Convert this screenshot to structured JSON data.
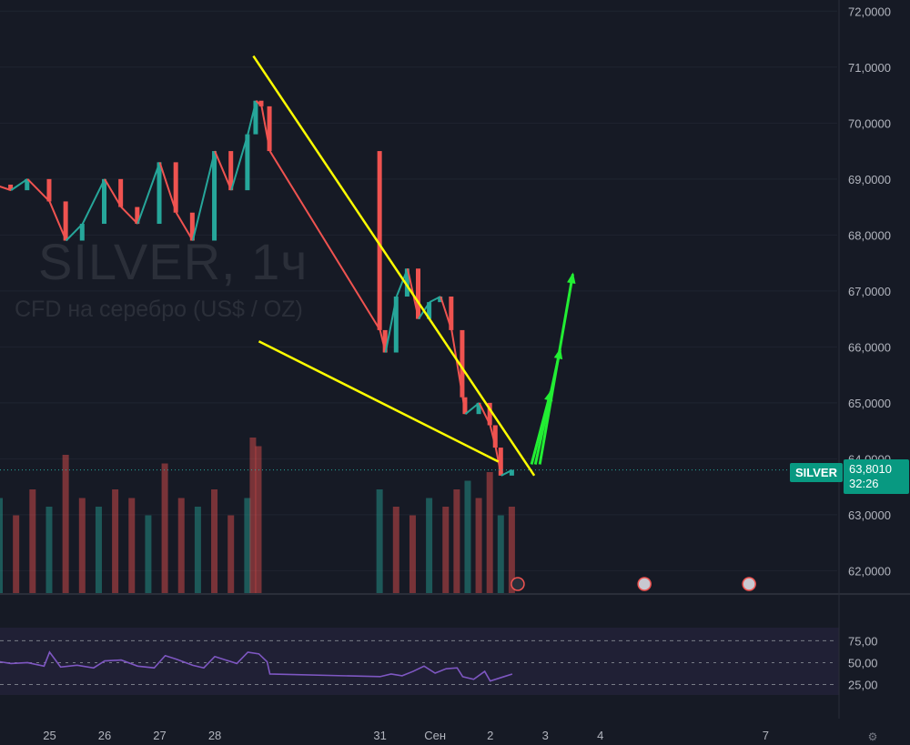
{
  "watermark": {
    "symbol": "SILVER, 1ч",
    "description": "CFD на серебро (US$ / OZ)"
  },
  "last_price": {
    "symbol": "SILVER",
    "price": "63,8010",
    "countdown": "32:26"
  },
  "colors": {
    "up": "#26a69a",
    "down": "#ef5350",
    "trendline": "#ffff00",
    "arrows": "#22ee33",
    "rsi": "#7e57c2",
    "background": "#161a25"
  },
  "event_icons": [
    "flash-icon",
    "us-flag-icon",
    "us-flag-icon"
  ],
  "chart_data": [
    {
      "type": "line",
      "name": "SILVER price",
      "y_axis_labels": [
        "72,0000",
        "71,0000",
        "70,0000",
        "69,0000",
        "68,0000",
        "67,0000",
        "66,0000",
        "65,0000",
        "64,0000",
        "63,0000",
        "62,0000"
      ],
      "y_ticks": [
        72,
        71,
        70,
        69,
        68,
        67,
        66,
        65,
        64,
        63,
        62
      ],
      "ylim": [
        61.6,
        72.2
      ],
      "x_axis_labels": [
        "25",
        "26",
        "27",
        "28",
        "31",
        "Сен",
        "2",
        "3",
        "4",
        "7"
      ],
      "x_ticks": [
        25,
        26,
        27,
        28,
        31,
        32,
        33,
        34,
        35,
        38
      ],
      "xlim": [
        24.1,
        39.3
      ],
      "x": [
        24.0,
        24.3,
        24.6,
        25.0,
        25.3,
        25.6,
        26.0,
        26.3,
        26.6,
        27.0,
        27.3,
        27.6,
        28.0,
        28.3,
        28.6,
        28.75,
        28.85,
        29.0,
        31.0,
        31.1,
        31.3,
        31.5,
        31.7,
        31.9,
        32.1,
        32.3,
        32.5,
        32.55,
        32.8,
        33.0,
        33.1,
        33.2,
        33.4
      ],
      "y": [
        68.9,
        68.8,
        69.0,
        68.6,
        67.9,
        68.2,
        69.0,
        68.5,
        68.2,
        69.3,
        68.4,
        67.9,
        69.5,
        68.8,
        69.8,
        70.4,
        70.3,
        69.5,
        66.3,
        65.9,
        66.9,
        67.4,
        66.5,
        66.8,
        66.9,
        66.3,
        65.1,
        64.8,
        65.0,
        64.6,
        64.2,
        63.7,
        63.8
      ]
    },
    {
      "type": "bar",
      "name": "Volume",
      "x": [
        24.1,
        24.4,
        24.7,
        25.0,
        25.3,
        25.6,
        25.9,
        26.2,
        26.5,
        26.8,
        27.1,
        27.4,
        27.7,
        28.0,
        28.3,
        28.6,
        28.7,
        28.8,
        31.0,
        31.3,
        31.6,
        31.9,
        32.2,
        32.4,
        32.6,
        32.8,
        33.0,
        33.2,
        33.4
      ],
      "values": [
        0.55,
        0.45,
        0.6,
        0.5,
        0.8,
        0.55,
        0.5,
        0.6,
        0.55,
        0.45,
        0.75,
        0.55,
        0.5,
        0.6,
        0.45,
        0.55,
        0.9,
        0.85,
        0.6,
        0.5,
        0.45,
        0.55,
        0.5,
        0.6,
        0.65,
        0.55,
        0.7,
        0.45,
        0.5
      ]
    },
    {
      "type": "line",
      "name": "RSI",
      "y_axis_labels": [
        "75,00",
        "50,00",
        "25,00"
      ],
      "y_ticks": [
        75,
        50,
        25
      ],
      "ylim": [
        12,
        90
      ],
      "x": [
        24.0,
        24.3,
        24.6,
        24.9,
        25.0,
        25.2,
        25.5,
        25.8,
        26.0,
        26.3,
        26.6,
        26.9,
        27.1,
        27.3,
        27.6,
        27.8,
        28.0,
        28.2,
        28.4,
        28.6,
        28.8,
        28.95,
        29.0,
        31.0,
        31.2,
        31.4,
        31.6,
        31.8,
        32.0,
        32.2,
        32.4,
        32.5,
        32.7,
        32.9,
        33.0,
        33.2,
        33.4
      ],
      "y": [
        52,
        49,
        50,
        46,
        62,
        45,
        47,
        44,
        52,
        53,
        46,
        44,
        58,
        54,
        47,
        44,
        57,
        53,
        49,
        62,
        60,
        51,
        37,
        34,
        37,
        35,
        40,
        46,
        38,
        43,
        44,
        34,
        31,
        40,
        29,
        33,
        37
      ]
    }
  ]
}
